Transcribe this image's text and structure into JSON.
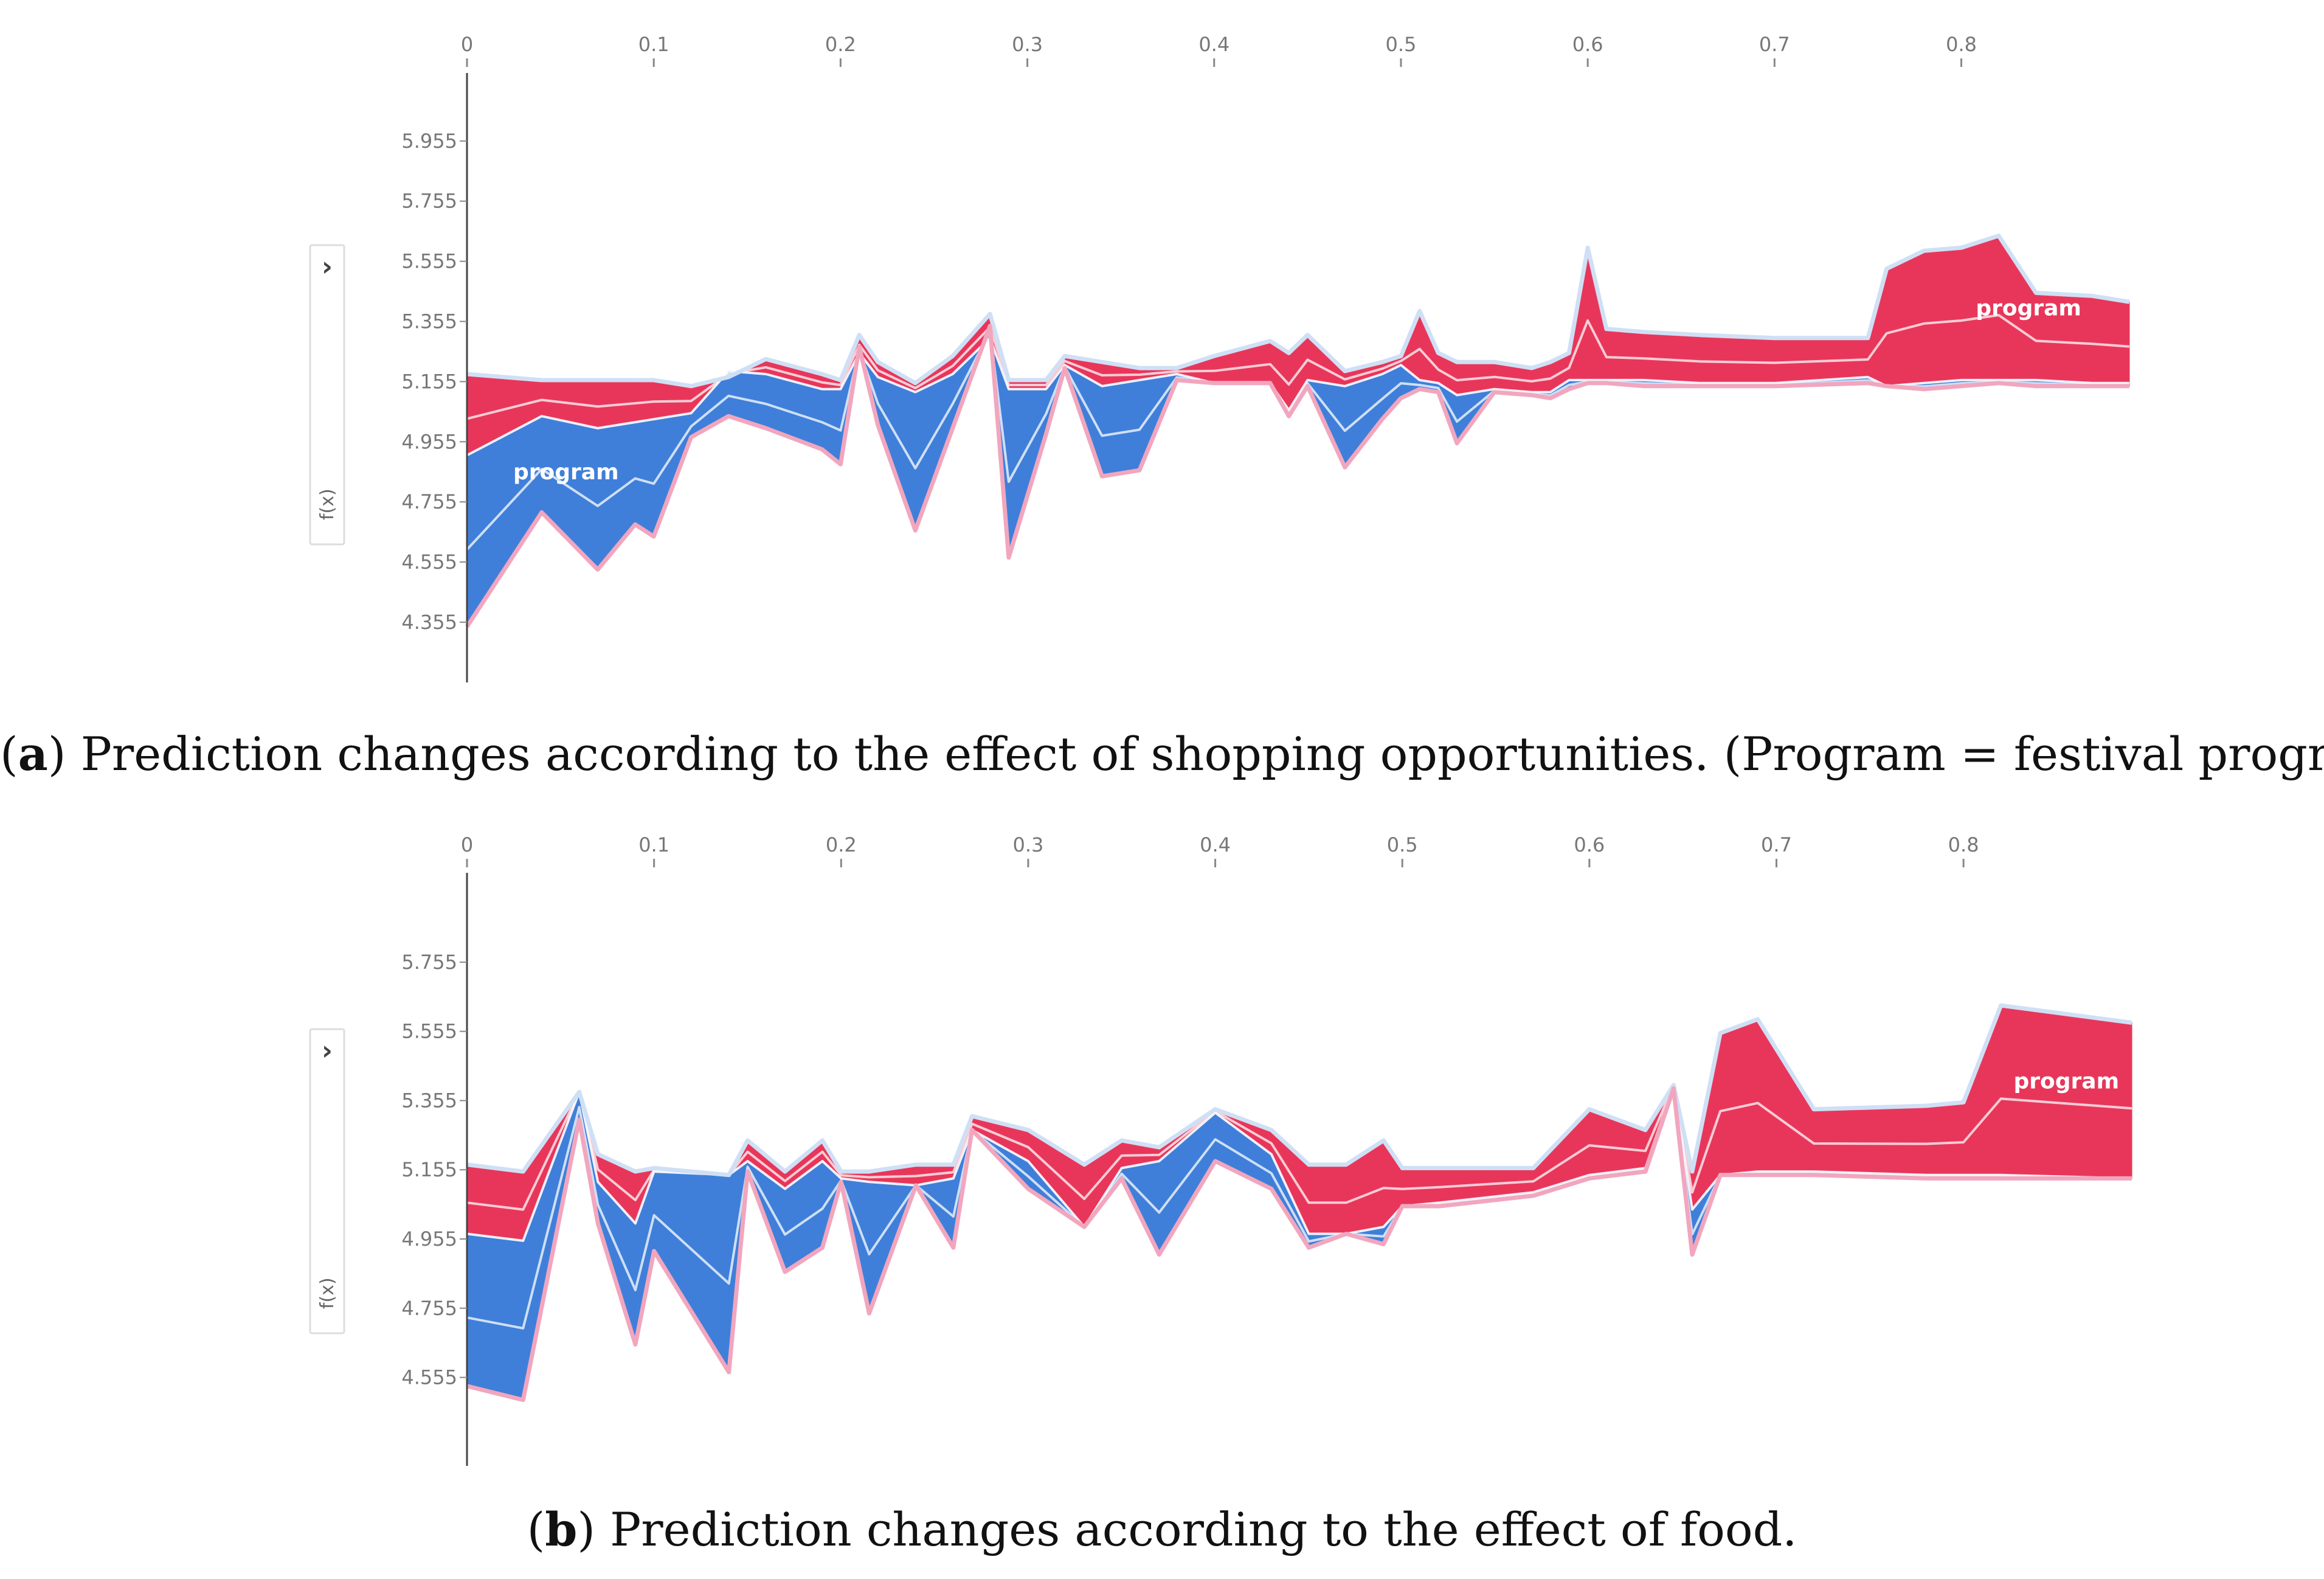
{
  "captions": [
    {
      "letter": "a",
      "text": " Prediction changes according to the effect of shopping opportunities. (Program = festival program)."
    },
    {
      "letter": "b",
      "text": " Prediction changes according to the effect of food."
    }
  ],
  "chart_data": [
    {
      "type": "area",
      "title": "",
      "ylabel": "f(x)",
      "toggle_glyph": "›",
      "series_label": "program",
      "x_ticks": [
        "0",
        "0.1",
        "0.2",
        "0.3",
        "0.4",
        "0.5",
        "0.6",
        "0.7",
        "0.8"
      ],
      "y_ticks": [
        "5.955",
        "5.755",
        "5.555",
        "5.355",
        "5.155",
        "4.955",
        "4.755",
        "4.555",
        "4.355"
      ],
      "xlim": [
        0,
        0.89
      ],
      "ylim": [
        4.28,
        6.08
      ],
      "x": [
        0,
        0.04,
        0.07,
        0.09,
        0.1,
        0.12,
        0.14,
        0.16,
        0.19,
        0.2,
        0.21,
        0.22,
        0.24,
        0.26,
        0.28,
        0.29,
        0.31,
        0.32,
        0.34,
        0.36,
        0.38,
        0.4,
        0.43,
        0.44,
        0.45,
        0.47,
        0.49,
        0.5,
        0.51,
        0.52,
        0.53,
        0.55,
        0.57,
        0.58,
        0.59,
        0.6,
        0.61,
        0.63,
        0.66,
        0.7,
        0.75,
        0.76,
        0.78,
        0.8,
        0.82,
        0.84,
        0.87,
        0.89
      ],
      "upper": [
        5.18,
        5.16,
        5.16,
        5.16,
        5.16,
        5.14,
        5.17,
        5.23,
        5.18,
        5.16,
        5.31,
        5.22,
        5.15,
        5.24,
        5.38,
        5.16,
        5.16,
        5.24,
        5.22,
        5.2,
        5.2,
        5.24,
        5.29,
        5.25,
        5.31,
        5.19,
        5.22,
        5.24,
        5.39,
        5.25,
        5.22,
        5.22,
        5.2,
        5.22,
        5.25,
        5.6,
        5.33,
        5.32,
        5.31,
        5.3,
        5.3,
        5.53,
        5.59,
        5.6,
        5.64,
        5.45,
        5.44,
        5.42
      ],
      "base": [
        4.91,
        5.04,
        5.0,
        5.02,
        5.03,
        5.05,
        5.19,
        5.18,
        5.13,
        5.13,
        5.25,
        5.17,
        5.12,
        5.18,
        5.3,
        5.13,
        5.13,
        5.21,
        5.14,
        5.16,
        5.18,
        5.15,
        5.15,
        5.06,
        5.16,
        5.14,
        5.18,
        5.21,
        5.16,
        5.15,
        5.11,
        5.13,
        5.12,
        5.12,
        5.16,
        5.16,
        5.16,
        5.16,
        5.15,
        5.15,
        5.17,
        5.14,
        5.15,
        5.16,
        5.16,
        5.16,
        5.15,
        5.15
      ],
      "lower": [
        4.34,
        4.72,
        4.53,
        4.68,
        4.64,
        4.97,
        5.04,
        5.0,
        4.93,
        4.88,
        5.27,
        5.01,
        4.66,
        5.0,
        5.34,
        4.57,
        4.98,
        5.2,
        4.84,
        4.86,
        5.16,
        5.15,
        5.15,
        5.04,
        5.14,
        4.87,
        5.03,
        5.1,
        5.13,
        5.12,
        4.95,
        5.12,
        5.11,
        5.1,
        5.13,
        5.15,
        5.15,
        5.14,
        5.14,
        5.14,
        5.15,
        5.14,
        5.13,
        5.14,
        5.15,
        5.14,
        5.14,
        5.14
      ]
    },
    {
      "type": "area",
      "title": "",
      "ylabel": "f(x)",
      "toggle_glyph": "›",
      "series_label": "program",
      "x_ticks": [
        "0",
        "0.1",
        "0.2",
        "0.3",
        "0.4",
        "0.5",
        "0.6",
        "0.7",
        "0.8"
      ],
      "y_ticks": [
        "5.755",
        "5.555",
        "5.355",
        "5.155",
        "4.955",
        "4.755",
        "4.555"
      ],
      "xlim": [
        0,
        0.89
      ],
      "ylim": [
        4.44,
        5.92
      ],
      "x": [
        0,
        0.03,
        0.06,
        0.07,
        0.09,
        0.1,
        0.14,
        0.15,
        0.17,
        0.19,
        0.2,
        0.215,
        0.24,
        0.26,
        0.27,
        0.3,
        0.33,
        0.35,
        0.37,
        0.4,
        0.43,
        0.45,
        0.47,
        0.49,
        0.5,
        0.52,
        0.57,
        0.6,
        0.63,
        0.645,
        0.655,
        0.67,
        0.69,
        0.72,
        0.78,
        0.8,
        0.82,
        0.89
      ],
      "upper": [
        5.17,
        5.15,
        5.38,
        5.2,
        5.15,
        5.16,
        5.14,
        5.24,
        5.15,
        5.24,
        5.15,
        5.15,
        5.17,
        5.17,
        5.31,
        5.27,
        5.17,
        5.24,
        5.22,
        5.33,
        5.27,
        5.17,
        5.17,
        5.24,
        5.16,
        5.16,
        5.16,
        5.33,
        5.27,
        5.4,
        5.15,
        5.55,
        5.59,
        5.33,
        5.34,
        5.35,
        5.63,
        5.58
      ],
      "base": [
        4.97,
        4.95,
        5.38,
        5.12,
        5.0,
        5.15,
        5.14,
        5.18,
        5.1,
        5.18,
        5.13,
        5.12,
        5.11,
        5.13,
        5.27,
        5.18,
        4.99,
        5.16,
        5.18,
        5.32,
        5.2,
        4.97,
        4.97,
        4.99,
        5.05,
        5.06,
        5.09,
        5.14,
        5.16,
        5.4,
        5.04,
        5.14,
        5.15,
        5.15,
        5.14,
        5.14,
        5.14,
        5.13
      ],
      "lower": [
        4.53,
        4.49,
        5.3,
        5.0,
        4.65,
        4.92,
        4.57,
        5.15,
        4.86,
        4.93,
        5.12,
        4.74,
        5.11,
        4.93,
        5.27,
        5.1,
        4.99,
        5.13,
        4.91,
        5.18,
        5.1,
        4.93,
        4.97,
        4.94,
        5.05,
        5.05,
        5.08,
        5.13,
        5.15,
        5.39,
        4.91,
        5.14,
        5.14,
        5.14,
        5.13,
        5.13,
        5.13,
        5.13
      ]
    }
  ]
}
